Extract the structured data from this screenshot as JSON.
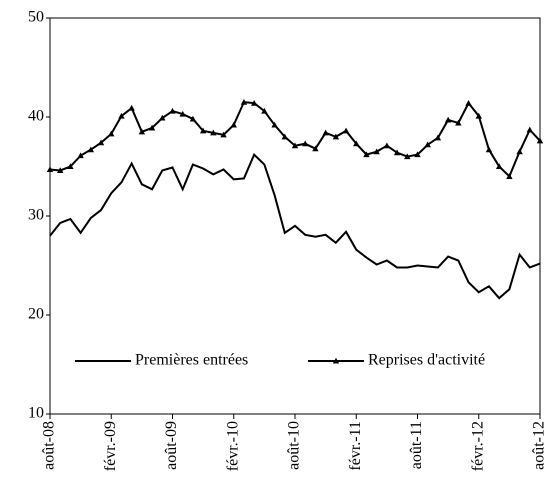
{
  "chart_data": {
    "type": "line",
    "categories": [
      "août-08",
      null,
      null,
      null,
      null,
      null,
      "févr.-09",
      null,
      null,
      null,
      null,
      null,
      "août-09",
      null,
      null,
      null,
      null,
      null,
      "févr.-10",
      null,
      null,
      null,
      null,
      null,
      "août-10",
      null,
      null,
      null,
      null,
      null,
      "févr.-11",
      null,
      null,
      null,
      null,
      null,
      "août-11",
      null,
      null,
      null,
      null,
      null,
      "févr.-12",
      null,
      null,
      null,
      null,
      null,
      "août-12"
    ],
    "series": [
      {
        "name": "Premières entrées",
        "color": "#000000",
        "marker": "none",
        "values": [
          28.0,
          29.3,
          29.7,
          28.3,
          29.8,
          30.6,
          32.3,
          33.4,
          35.3,
          33.2,
          32.7,
          34.6,
          34.9,
          32.7,
          35.2,
          34.8,
          34.2,
          34.7,
          33.7,
          33.8,
          36.2,
          35.2,
          32.1,
          28.3,
          29.0,
          28.1,
          27.9,
          28.1,
          27.3,
          28.4,
          26.6,
          25.8,
          25.1,
          25.5,
          24.8,
          24.8,
          25.0,
          24.9,
          24.8,
          25.9,
          25.5,
          23.3,
          22.3,
          22.9,
          21.7,
          22.6,
          26.1,
          24.8,
          25.2
        ]
      },
      {
        "name": "Reprises d'activité",
        "color": "#000000",
        "marker": "triangle",
        "values": [
          34.7,
          34.6,
          35.0,
          36.1,
          36.7,
          37.4,
          38.3,
          40.1,
          40.9,
          38.5,
          38.9,
          39.9,
          40.6,
          40.3,
          39.8,
          38.6,
          38.4,
          38.2,
          39.2,
          41.5,
          41.4,
          40.6,
          39.2,
          38.0,
          37.1,
          37.3,
          36.8,
          38.4,
          38.0,
          38.6,
          37.3,
          36.2,
          36.5,
          37.1,
          36.4,
          36.0,
          36.2,
          37.2,
          37.9,
          39.7,
          39.4,
          41.4,
          40.1,
          36.7,
          35.0,
          34.0,
          36.5,
          38.7,
          37.6
        ]
      }
    ],
    "ylim": [
      10,
      50
    ],
    "yticks": [
      10,
      20,
      30,
      40,
      50
    ],
    "grid": false,
    "legend": "bottom"
  }
}
